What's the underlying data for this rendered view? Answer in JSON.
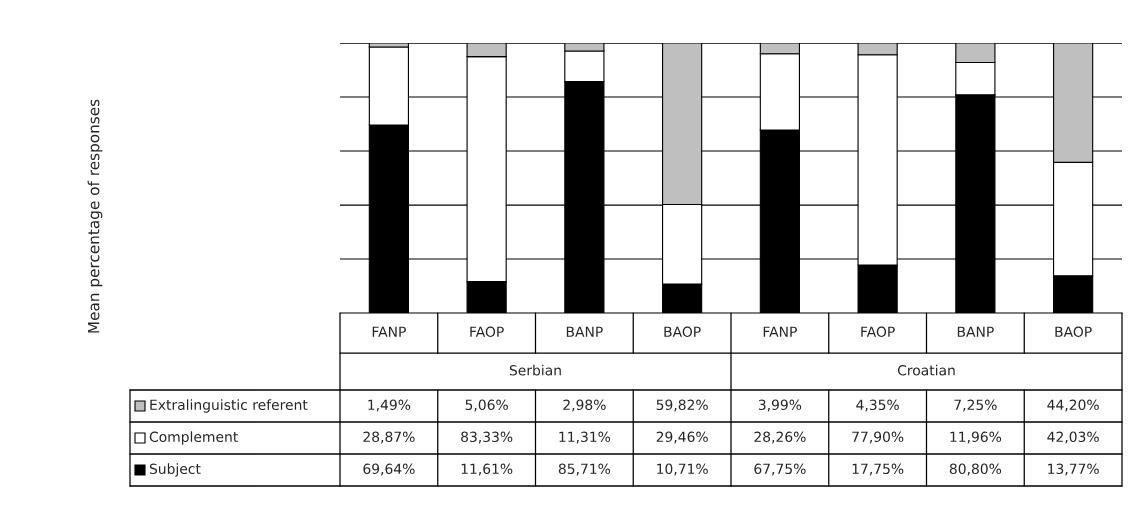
{
  "chart_data": {
    "type": "bar",
    "stacked": true,
    "categories": [
      "FANP",
      "FAOP",
      "BANP",
      "BAOP",
      "FANP",
      "FAOP",
      "BANP",
      "BAOP"
    ],
    "annotations": [
      "Mean percentage of responses",
      "Serbian",
      "Croatian"
    ],
    "series": [
      {
        "name": "Subject",
        "color": "#000000",
        "values": [
          69.64,
          11.61,
          85.71,
          10.71,
          67.75,
          17.75,
          80.8,
          13.77
        ],
        "value_labels": [
          "69,64%",
          "11,61%",
          "85,71%",
          "10,71%",
          "67,75%",
          "17,75%",
          "80,80%",
          "13,77%"
        ]
      },
      {
        "name": "Complement",
        "color": "#ffffff",
        "values": [
          28.87,
          83.33,
          11.31,
          29.46,
          28.26,
          77.9,
          11.96,
          42.03
        ],
        "value_labels": [
          "28,87%",
          "83,33%",
          "11,31%",
          "29,46%",
          "28,26%",
          "77,90%",
          "11,96%",
          "42,03%"
        ]
      },
      {
        "name": "Extralinguistic referent",
        "color": "#bfbfbf",
        "values": [
          1.49,
          5.06,
          2.98,
          59.82,
          3.99,
          4.35,
          7.25,
          44.2
        ],
        "value_labels": [
          "1,49%",
          "5,06%",
          "2,98%",
          "59,82%",
          "3,99%",
          "4,35%",
          "7,25%",
          "44,20%"
        ]
      }
    ],
    "ylim": [
      0,
      100
    ],
    "yticks": [
      {
        "value": 20,
        "label": null
      },
      {
        "value": 40,
        "label": null
      },
      {
        "value": 60,
        "label": null
      },
      {
        "value": 80,
        "label": null
      },
      {
        "value": 100,
        "label": null
      }
    ],
    "grid": "y",
    "legend": "bottom left",
    "tick_labels": "x"
  }
}
